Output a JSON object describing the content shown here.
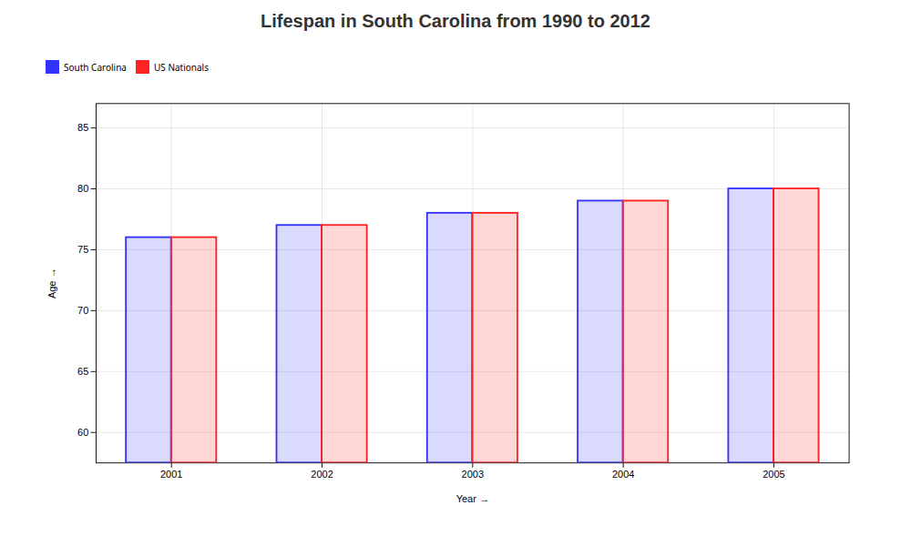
{
  "chart_data": {
    "type": "bar",
    "title": "Lifespan in South Carolina from 1990 to 2012",
    "xlabel": "Year",
    "ylabel": "Age",
    "categories": [
      "2001",
      "2002",
      "2003",
      "2004",
      "2005"
    ],
    "series": [
      {
        "name": "South Carolina",
        "color": "#3333ff",
        "values": [
          76,
          77,
          78,
          79,
          80
        ]
      },
      {
        "name": "US Nationals",
        "color": "#ff2222",
        "values": [
          76,
          77,
          78,
          79,
          80
        ]
      }
    ],
    "ylim": [
      57.5,
      87
    ],
    "yticks": [
      60,
      65,
      70,
      75,
      80,
      85
    ],
    "grid": true,
    "legend": "top"
  }
}
